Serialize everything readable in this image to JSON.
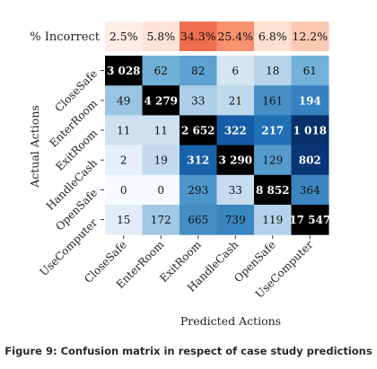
{
  "figure": {
    "caption": "Figure 9: Confusion matrix in respect of case study predictions"
  },
  "chart_data": {
    "type": "heatmap",
    "xlabel": "Predicted Actions",
    "ylabel": "Actual Actions",
    "row_labels": [
      "CloseSafe",
      "EnterRoom",
      "ExitRoom",
      "HandleCash",
      "OpenSafe",
      "UseComputer"
    ],
    "col_labels": [
      "CloseSafe",
      "EnterRoom",
      "ExitRoom",
      "HandleCash",
      "OpenSafe",
      "UseComputer"
    ],
    "matrix": [
      [
        3028,
        62,
        82,
        6,
        18,
        61
      ],
      [
        49,
        4279,
        33,
        21,
        161,
        194
      ],
      [
        11,
        11,
        2652,
        322,
        217,
        1018
      ],
      [
        2,
        19,
        312,
        3290,
        129,
        802
      ],
      [
        0,
        0,
        293,
        33,
        8852,
        364
      ],
      [
        15,
        172,
        665,
        739,
        119,
        17547
      ]
    ],
    "matrix_display": [
      [
        "3 028",
        "62",
        "82",
        "6",
        "18",
        "61"
      ],
      [
        "49",
        "4 279",
        "33",
        "21",
        "161",
        "194"
      ],
      [
        "11",
        "11",
        "2 652",
        "322",
        "217",
        "1 018"
      ],
      [
        "2",
        "19",
        "312",
        "3 290",
        "129",
        "802"
      ],
      [
        "0",
        "0",
        "293",
        "33",
        "8 852",
        "364"
      ],
      [
        "15",
        "172",
        "665",
        "739",
        "119",
        "17 547"
      ]
    ],
    "incorrect_row": {
      "label": "% Incorrect",
      "values": [
        2.5,
        5.8,
        34.3,
        25.4,
        6.8,
        12.2
      ],
      "display": [
        "2.5%",
        "5.8%",
        "34.3%",
        "25.4%",
        "6.8%",
        "12.2%"
      ]
    },
    "diagonal_color": "#000000",
    "offdiag_colormap": "blues",
    "incorrect_colormap": "reds",
    "grid": false,
    "legend": "none"
  }
}
